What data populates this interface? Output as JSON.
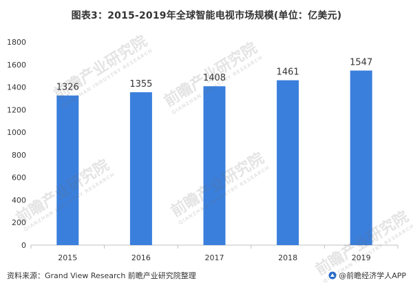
{
  "title": "图表3：2015-2019年全球智能电视市场规模(单位：亿美元)",
  "footer": {
    "source": "资料来源：Grand View Research 前瞻产业研究院整理",
    "credit": "@前瞻经济学人APP"
  },
  "watermark": {
    "text": "前瞻产业研究院",
    "subtext": "QIANZHAN INDUSTRY RESEARCH"
  },
  "colors": {
    "bar": "#3a7fdc",
    "axis": "#bfbfbf",
    "text": "#333333"
  },
  "chart_data": {
    "type": "bar",
    "categories": [
      "2015",
      "2016",
      "2017",
      "2018",
      "2019"
    ],
    "values": [
      1326,
      1355,
      1408,
      1461,
      1547
    ],
    "title": "图表3：2015-2019年全球智能电视市场规模(单位：亿美元)",
    "xlabel": "",
    "ylabel": "",
    "ylim": [
      0,
      1800
    ],
    "yticks": [
      0,
      200,
      400,
      600,
      800,
      1000,
      1200,
      1400,
      1600,
      1800
    ],
    "grid": false,
    "data_labels": true
  }
}
